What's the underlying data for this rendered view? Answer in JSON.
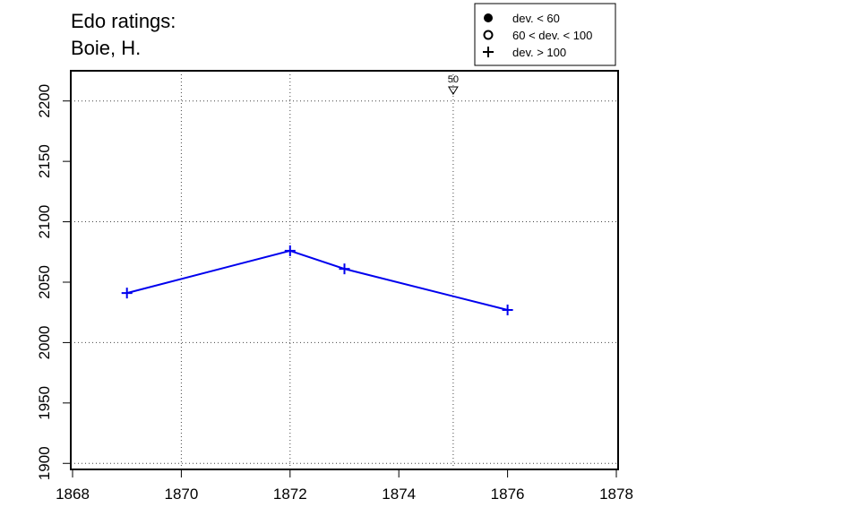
{
  "chart_data": {
    "type": "line",
    "title": [
      "Edo ratings:",
      "Boie, H."
    ],
    "xlabel": "",
    "ylabel": "",
    "xlim": [
      1868,
      1878
    ],
    "ylim": [
      1895,
      2225
    ],
    "x_ticks": [
      1868,
      1870,
      1872,
      1874,
      1876,
      1878
    ],
    "y_ticks": [
      1900,
      1950,
      2000,
      2050,
      2100,
      2150,
      2200
    ],
    "x_grid": [
      1870,
      1872,
      1875
    ],
    "y_grid": [
      1900,
      2000,
      2100,
      2200
    ],
    "grid": true,
    "series": [
      {
        "color": "#0000ee",
        "marker": "plus",
        "points": [
          {
            "x": 1869,
            "y": 2041
          },
          {
            "x": 1872,
            "y": 2076
          },
          {
            "x": 1873,
            "y": 2061
          },
          {
            "x": 1876,
            "y": 2027
          }
        ]
      }
    ],
    "annotations": [
      {
        "x": 1875,
        "label": "50",
        "marker": "down-triangle"
      }
    ],
    "legend": {
      "placement": "top-right",
      "entries": [
        {
          "label": "dev. < 60",
          "marker": "filled-circle"
        },
        {
          "label": "60 < dev. < 100",
          "marker": "open-circle"
        },
        {
          "label": "dev. > 100",
          "marker": "plus"
        }
      ]
    }
  }
}
